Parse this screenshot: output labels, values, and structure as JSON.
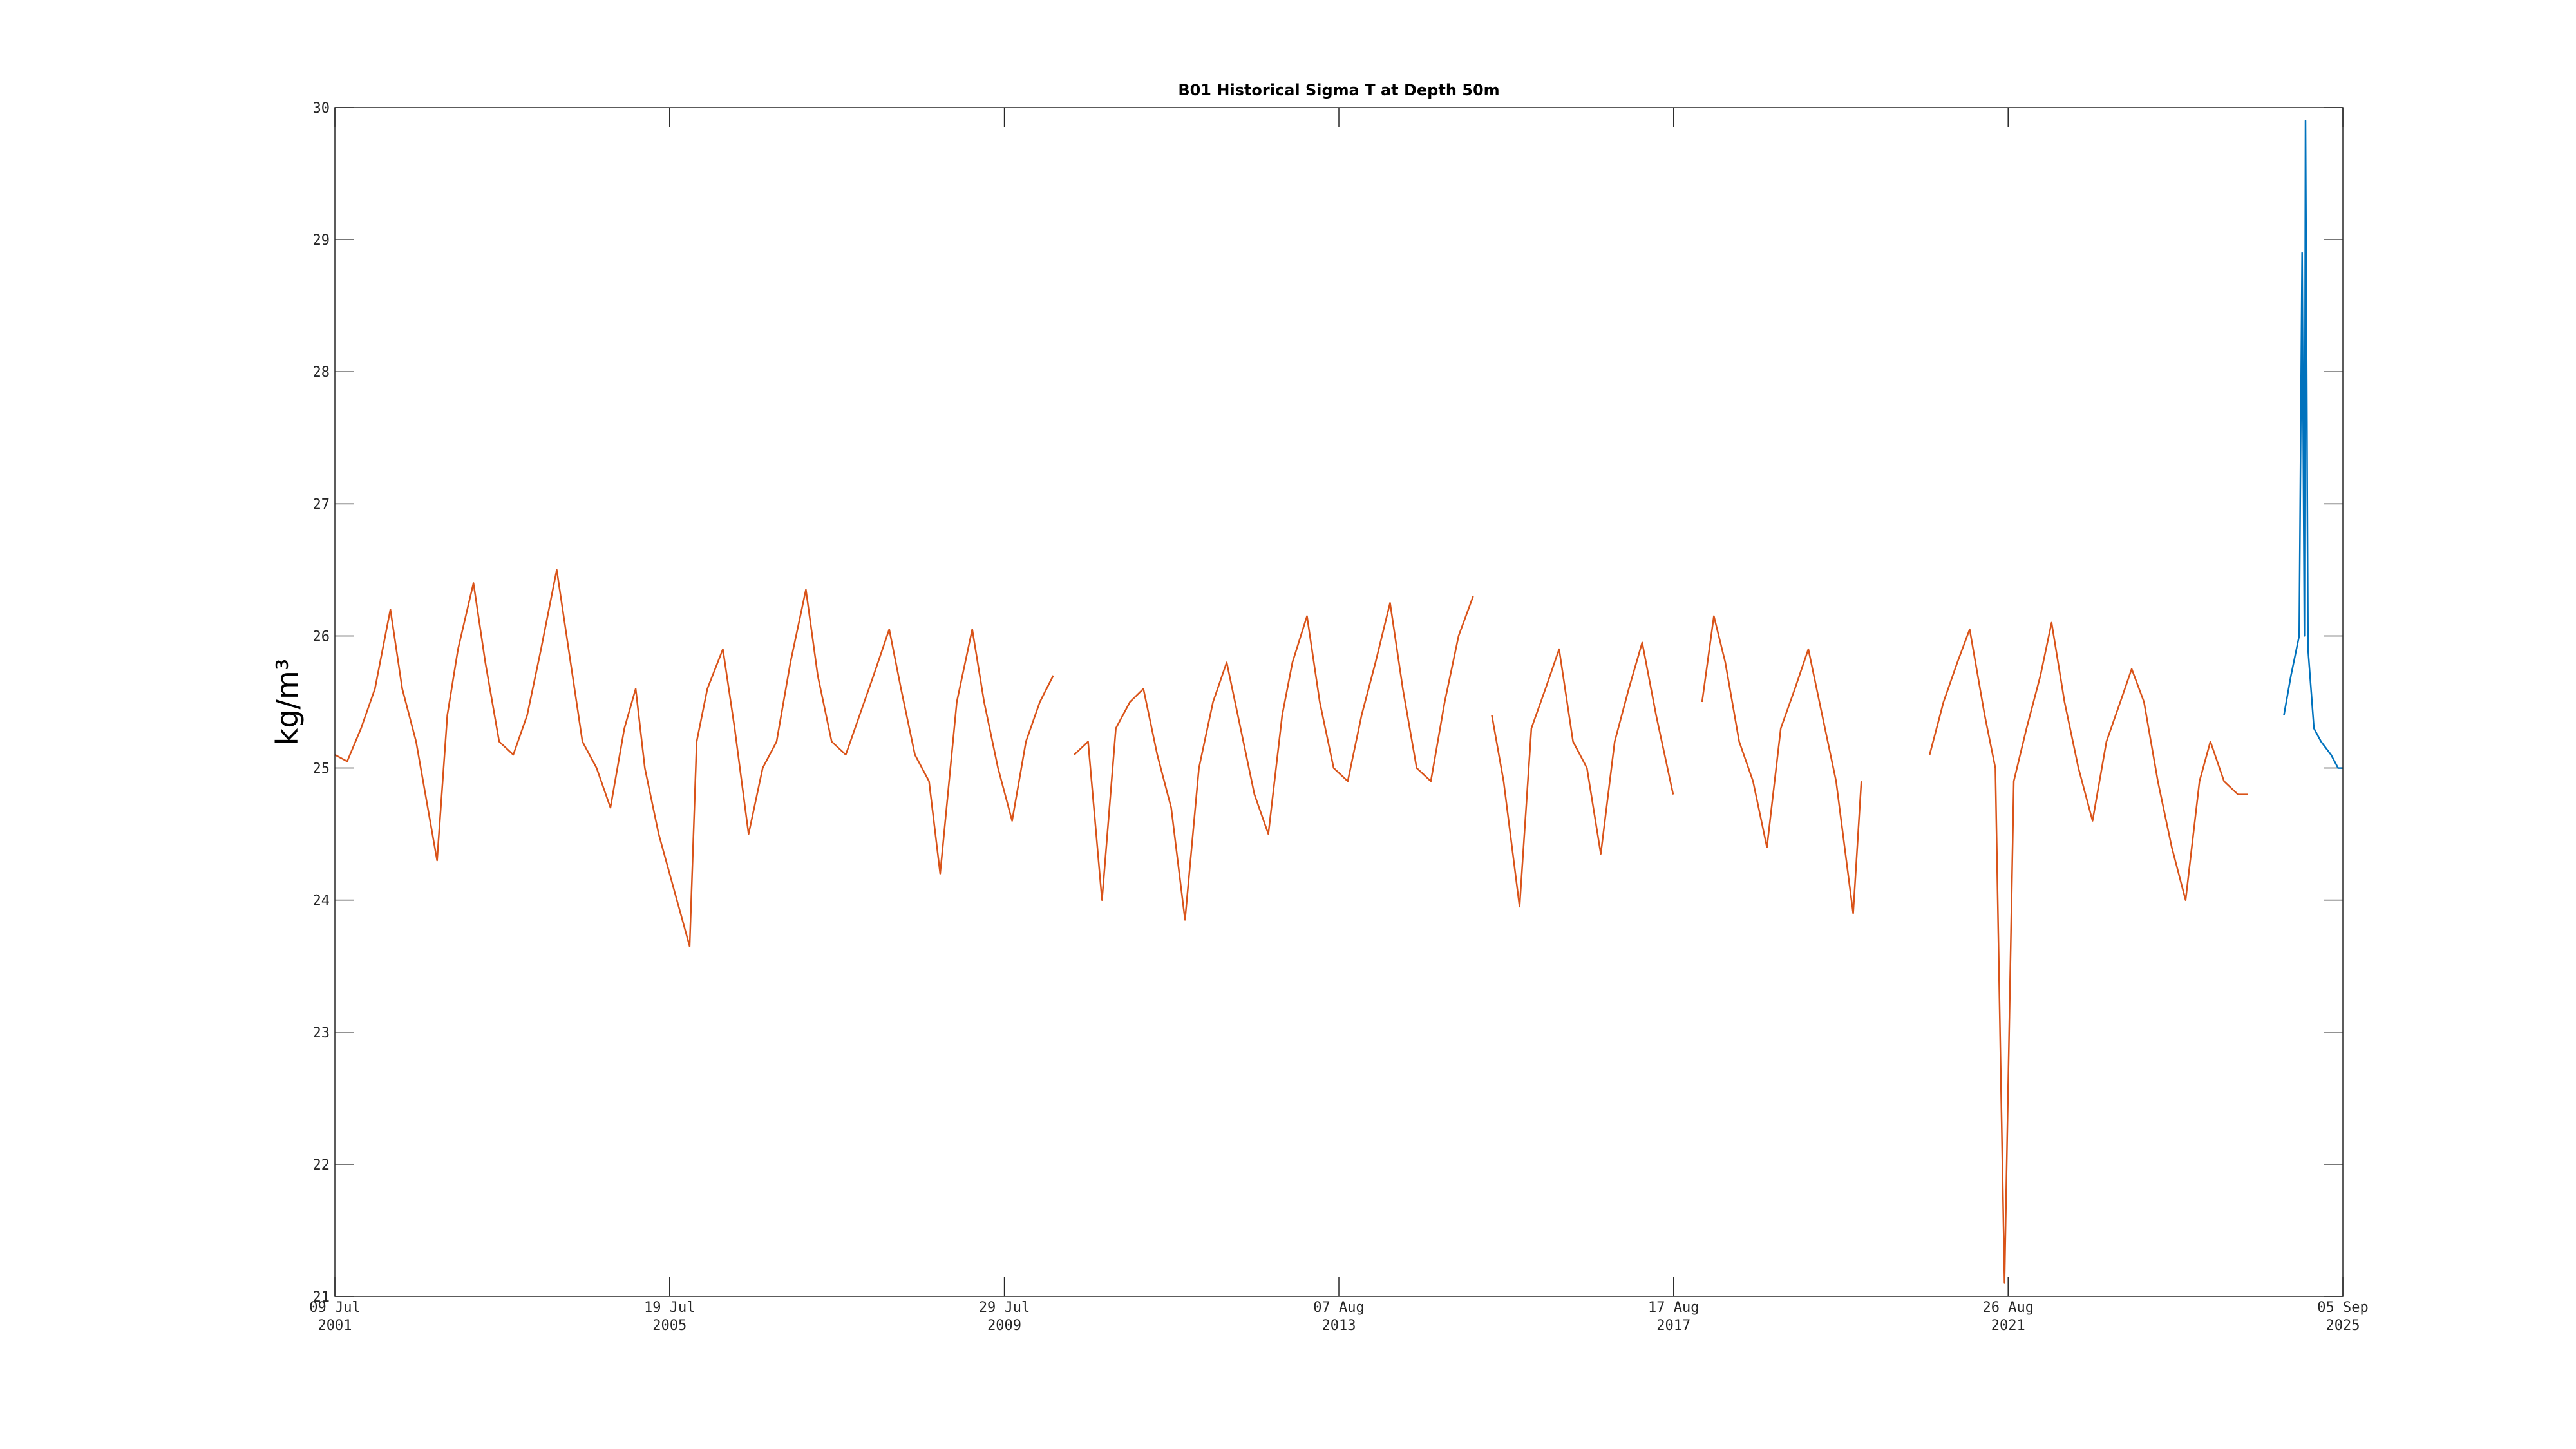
{
  "chart_data": {
    "type": "line",
    "title": "B01 Historical Sigma T at Depth 50m",
    "ylabel": "kg/m³",
    "xlim": [
      "2001-07-09",
      "2025-09-05"
    ],
    "xticks": [
      {
        "value": "2001-07-09",
        "label": [
          "09 Jul",
          "2001"
        ]
      },
      {
        "value": "2005-07-19",
        "label": [
          "19 Jul",
          "2005"
        ]
      },
      {
        "value": "2009-07-29",
        "label": [
          "29 Jul",
          "2009"
        ]
      },
      {
        "value": "2013-08-07",
        "label": [
          "07 Aug",
          "2013"
        ]
      },
      {
        "value": "2017-08-17",
        "label": [
          "17 Aug",
          "2017"
        ]
      },
      {
        "value": "2021-08-26",
        "label": [
          "26 Aug",
          "2021"
        ]
      },
      {
        "value": "2025-09-05",
        "label": [
          "05 Sep",
          "2025"
        ]
      }
    ],
    "ylim": [
      21,
      30
    ],
    "yticks": [
      21,
      22,
      23,
      24,
      25,
      26,
      27,
      28,
      29,
      30
    ],
    "series": [
      {
        "color": "#d95319",
        "x": [
          "2001-07-09",
          "2001-09-01",
          "2001-11-01",
          "2002-01-01",
          "2002-03-10",
          "2002-05-01",
          "2002-07-01",
          "2002-10-01",
          "2002-11-15",
          "2003-01-01",
          "2003-03-10",
          "2003-05-01",
          "2003-07-01",
          "2003-09-01",
          "2003-11-01",
          "2004-01-01",
          "2004-03-10",
          "2004-05-01",
          "2004-07-01",
          "2004-09-01",
          "2004-11-01",
          "2005-01-01",
          "2005-02-20",
          "2005-04-01",
          "2005-06-01",
          "2005-10-15",
          "2005-11-15",
          "2006-01-01",
          "2006-03-10",
          "2006-05-01",
          "2006-07-01",
          "2006-09-01",
          "2006-11-01",
          "2007-01-01",
          "2007-03-10",
          "2007-05-01",
          "2007-07-01",
          "2007-09-01",
          "2007-11-01",
          "2008-01-01",
          "2008-03-10",
          "2008-05-01",
          "2008-07-01",
          "2008-09-01",
          "2008-10-20",
          "2009-01-01",
          "2009-03-10",
          "2009-05-01",
          "2009-07-01",
          "2009-09-01",
          "2009-11-01",
          "2010-01-01",
          "2010-03-01",
          "2010-04-01",
          "2010-06-01",
          "2010-08-01",
          "2010-10-01",
          "2010-12-01",
          "2011-02-01",
          "2011-04-01",
          "2011-06-01",
          "2011-08-01",
          "2011-10-01",
          "2011-12-01",
          "2012-02-01",
          "2012-04-01",
          "2012-06-01",
          "2012-08-01",
          "2012-10-01",
          "2012-12-01",
          "2013-01-15",
          "2013-03-20",
          "2013-05-15",
          "2013-07-15",
          "2013-09-15",
          "2013-11-15",
          "2014-01-15",
          "2014-03-20",
          "2014-05-15",
          "2014-07-15",
          "2014-09-15",
          "2014-11-15",
          "2015-01-15",
          "2015-03-20",
          "2015-04-20",
          "2015-06-10",
          "2015-08-01",
          "2015-10-10",
          "2015-12-01",
          "2016-02-01",
          "2016-04-01",
          "2016-06-01",
          "2016-08-01",
          "2016-10-01",
          "2016-12-01",
          "2017-02-01",
          "2017-04-01",
          "2017-06-01",
          "2017-08-15",
          "2017-11-01",
          "2017-12-20",
          "2018-02-10",
          "2018-04-01",
          "2018-06-01",
          "2018-08-01",
          "2018-10-01",
          "2018-12-01",
          "2019-02-01",
          "2019-04-01",
          "2019-06-01",
          "2019-08-01",
          "2019-10-15",
          "2019-11-20",
          "2020-03-01",
          "2020-09-15",
          "2020-11-15",
          "2021-01-15",
          "2021-03-10",
          "2021-05-15",
          "2021-07-01",
          "2021-08-10",
          "2021-09-20",
          "2021-11-15",
          "2022-01-15",
          "2022-03-05",
          "2022-05-01",
          "2022-07-01",
          "2022-09-01",
          "2022-11-01",
          "2023-01-01",
          "2023-02-20",
          "2023-04-15",
          "2023-06-15",
          "2023-08-15",
          "2023-10-15",
          "2023-12-15",
          "2024-02-01",
          "2024-04-01",
          "2024-06-01",
          "2024-07-15"
        ],
        "values": [
          25.1,
          25.05,
          25.3,
          25.6,
          26.2,
          25.6,
          25.2,
          24.3,
          25.4,
          25.9,
          26.4,
          25.8,
          25.2,
          25.1,
          25.4,
          25.9,
          26.5,
          25.9,
          25.2,
          25.0,
          24.7,
          25.3,
          25.6,
          25.0,
          24.5,
          23.65,
          25.2,
          25.6,
          25.9,
          25.3,
          24.5,
          25.0,
          25.2,
          25.8,
          26.35,
          25.7,
          25.2,
          25.1,
          25.4,
          25.7,
          26.05,
          25.6,
          25.1,
          24.9,
          24.2,
          25.5,
          26.05,
          25.5,
          25.0,
          24.6,
          25.2,
          25.5,
          25.7,
          null,
          25.1,
          25.2,
          24.0,
          25.3,
          25.5,
          25.6,
          25.1,
          24.7,
          23.85,
          25.0,
          25.5,
          25.8,
          25.3,
          24.8,
          24.5,
          25.4,
          25.8,
          26.15,
          25.5,
          25.0,
          24.9,
          25.4,
          25.8,
          26.25,
          25.6,
          25.0,
          24.9,
          25.5,
          26.0,
          26.3,
          null,
          25.4,
          24.9,
          23.95,
          25.3,
          25.6,
          25.9,
          25.2,
          25.0,
          24.35,
          25.2,
          25.6,
          25.95,
          25.4,
          24.8,
          null,
          25.5,
          26.15,
          25.8,
          25.2,
          24.9,
          24.4,
          25.3,
          25.6,
          25.9,
          25.4,
          24.9,
          23.9,
          24.9,
          null,
          25.1,
          25.5,
          25.8,
          26.05,
          25.4,
          25.0,
          21.1,
          24.9,
          25.3,
          25.7,
          26.1,
          25.5,
          25.0,
          24.6,
          25.2,
          25.5,
          25.75,
          25.5,
          24.9,
          24.4,
          24.0,
          24.9,
          25.2,
          24.9,
          24.8,
          24.8
        ]
      },
      {
        "color": "#0072bd",
        "x": [
          "2024-12-20",
          "2025-01-20",
          "2025-02-25",
          "2025-03-10",
          "2025-03-20",
          "2025-03-25",
          "2025-04-05",
          "2025-05-01",
          "2025-06-01",
          "2025-07-15",
          "2025-08-15",
          "2025-09-05"
        ],
        "values": [
          25.4,
          25.7,
          26.0,
          28.9,
          26.0,
          29.9,
          25.9,
          25.3,
          25.2,
          25.1,
          25.0,
          25.0
        ]
      }
    ]
  }
}
